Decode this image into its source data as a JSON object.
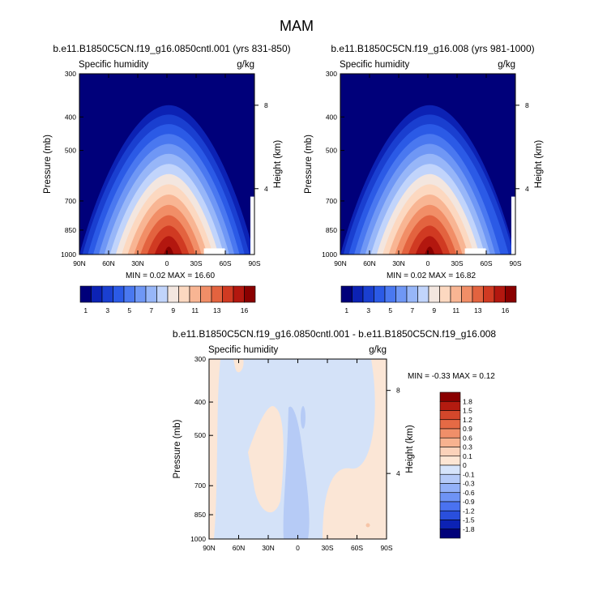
{
  "figure": {
    "title": "MAM",
    "colors": {
      "abs_scale": [
        "#00007a",
        "#0c22b4",
        "#1a3fd0",
        "#2b5ae6",
        "#4a78f0",
        "#6f97f5",
        "#97b6f8",
        "#c1d4fb",
        "#f3e6df",
        "#fcd8c0",
        "#f8b593",
        "#f18e67",
        "#e3633f",
        "#d03a22",
        "#b3170f",
        "#8a0000"
      ],
      "diff_scale": [
        "#00007a",
        "#0c22b4",
        "#2a4fdc",
        "#4a72f0",
        "#6e93f5",
        "#93b1f8",
        "#b5caf8",
        "#d6e4fb",
        "#fde6d4",
        "#fbd2ba",
        "#f7b28f",
        "#f08f69",
        "#e56a45",
        "#d4472b",
        "#b41b10",
        "#8a0000"
      ]
    }
  },
  "panels": [
    {
      "title": "b.e11.B1850C5CN.f19_g16.0850cntl.001 (yrs 831-850)",
      "left_label": "Specific humidity",
      "right_label": "g/kg",
      "ylabel": "Pressure (mb)",
      "ylabel2": "Height (km)",
      "stats": "MIN =  0.02  MAX =  16.60"
    },
    {
      "title": "b.e11.B1850C5CN.f19_g16.008 (yrs 981-1000)",
      "left_label": "Specific humidity",
      "right_label": "g/kg",
      "ylabel": "Pressure (mb)",
      "ylabel2": "Height (km)",
      "stats": "MIN =  0.02  MAX =  16.82"
    },
    {
      "title": "b.e11.B1850C5CN.f19_g16.0850cntl.001 - b.e11.B1850C5CN.f19_g16.008",
      "left_label": "Specific humidity",
      "right_label": "g/kg",
      "ylabel": "Pressure (mb)",
      "ylabel2": "Height (km)",
      "stats": "MIN = -0.33  MAX =  0.12"
    }
  ],
  "chart_data": [
    {
      "type": "heatmap",
      "title": "b.e11.B1850C5CN.f19_g16.0850cntl.001 (yrs 831-850)",
      "xlabel": "",
      "ylabel": "Pressure (mb)",
      "ylabel_right": "Height (km)",
      "x_ticks": [
        "90N",
        "60N",
        "30N",
        "0",
        "30S",
        "60S",
        "90S"
      ],
      "y_ticks": [
        "300",
        "400",
        "500",
        "700",
        "850",
        "1000"
      ],
      "y_ticks_right": [
        "8",
        "4"
      ],
      "xlim": [
        90,
        -90
      ],
      "ylim": [
        1000,
        300
      ],
      "y_scale": "log",
      "contour_levels": [
        1,
        2,
        3,
        4,
        5,
        6,
        7,
        8,
        9,
        10,
        11,
        12,
        13,
        14,
        15,
        16
      ],
      "colorbar_labels": [
        "1",
        "3",
        "5",
        "7",
        "9",
        "11",
        "13",
        "16"
      ],
      "peak": {
        "lat": 0,
        "pressure": 1000,
        "value": 16.6
      },
      "min": 0.02,
      "max": 16.6
    },
    {
      "type": "heatmap",
      "title": "b.e11.B1850C5CN.f19_g16.008 (yrs 981-1000)",
      "xlabel": "",
      "ylabel": "Pressure (mb)",
      "ylabel_right": "Height (km)",
      "x_ticks": [
        "90N",
        "60N",
        "30N",
        "0",
        "30S",
        "60S",
        "90S"
      ],
      "y_ticks": [
        "300",
        "400",
        "500",
        "700",
        "850",
        "1000"
      ],
      "y_ticks_right": [
        "8",
        "4"
      ],
      "xlim": [
        90,
        -90
      ],
      "ylim": [
        1000,
        300
      ],
      "y_scale": "log",
      "contour_levels": [
        1,
        2,
        3,
        4,
        5,
        6,
        7,
        8,
        9,
        10,
        11,
        12,
        13,
        14,
        15,
        16
      ],
      "colorbar_labels": [
        "1",
        "3",
        "5",
        "7",
        "9",
        "11",
        "13",
        "16"
      ],
      "peak": {
        "lat": 0,
        "pressure": 1000,
        "value": 16.82
      },
      "min": 0.02,
      "max": 16.82
    },
    {
      "type": "heatmap",
      "title": "b.e11.B1850C5CN.f19_g16.0850cntl.001 - b.e11.B1850C5CN.f19_g16.008",
      "xlabel": "",
      "ylabel": "Pressure (mb)",
      "ylabel_right": "Height (km)",
      "x_ticks": [
        "90N",
        "60N",
        "30N",
        "0",
        "30S",
        "60S",
        "90S"
      ],
      "y_ticks": [
        "300",
        "400",
        "500",
        "700",
        "850",
        "1000"
      ],
      "y_ticks_right": [
        "8",
        "4"
      ],
      "xlim": [
        90,
        -90
      ],
      "ylim": [
        1000,
        300
      ],
      "y_scale": "log",
      "contour_levels": [
        -1.8,
        -1.5,
        -1.2,
        -0.9,
        -0.6,
        -0.3,
        -0.1,
        0,
        0.1,
        0.3,
        0.6,
        0.9,
        1.2,
        1.5,
        1.8
      ],
      "colorbar_labels": [
        "1.8",
        "1.5",
        "1.2",
        "0.9",
        "0.6",
        "0.3",
        "0.1",
        "0",
        "-0.1",
        "-0.3",
        "-0.6",
        "-0.9",
        "-1.2",
        "-1.5",
        "-1.8"
      ],
      "min": -0.33,
      "max": 0.12
    }
  ]
}
